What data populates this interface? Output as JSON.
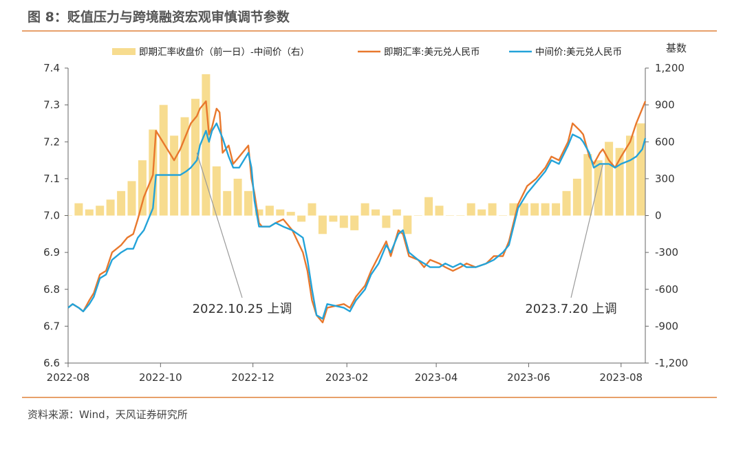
{
  "header": {
    "title": "图 8：贬值压力与跨境融资宏观审慎调节参数"
  },
  "footer": {
    "source": "资料来源：Wind，天风证券研究所"
  },
  "colors": {
    "bar": "#f7dc8f",
    "spot": "#e8782d",
    "mid": "#23a3d9",
    "rule": "#e7a06a",
    "negative_tick": "#c0392b"
  },
  "chart_data": {
    "type": "line",
    "title": "",
    "right_axis_title": "基数",
    "x_ticks": [
      "2022-08",
      "2022-10",
      "2022-12",
      "2023-02",
      "2023-04",
      "2023-06",
      "2023-08"
    ],
    "x_tick_dates": [
      "2022-08-01",
      "2022-10-01",
      "2022-12-01",
      "2023-02-01",
      "2023-04-01",
      "2023-06-01",
      "2023-08-01"
    ],
    "x_range": [
      "2022-08-01",
      "2023-08-17"
    ],
    "y_left": {
      "min": 6.6,
      "max": 7.4,
      "ticks": [
        "6.6",
        "6.7",
        "6.8",
        "6.9",
        "7.0",
        "7.1",
        "7.2",
        "7.3",
        "7.4"
      ]
    },
    "y_right": {
      "min": -1200,
      "max": 1200,
      "ticks": [
        "-1,200",
        "-900",
        "-600",
        "-300",
        "0",
        "300",
        "600",
        "900",
        "1,200"
      ]
    },
    "legend": [
      {
        "name": "即期汇率收盘价（前一日）-中间价（右）",
        "kind": "bar"
      },
      {
        "name": "即期汇率:美元兑人民币",
        "kind": "line"
      },
      {
        "name": "中间价:美元兑人民币",
        "kind": "line"
      }
    ],
    "annotations": [
      {
        "text": "2022.10.25 上调",
        "date": "2022-10-25",
        "value": 7.17
      },
      {
        "text": "2023.7.20 上调",
        "date": "2023-07-20",
        "value": 7.14
      }
    ],
    "series": [
      {
        "name": "即期汇率:美元兑人民币",
        "points": [
          [
            "2022-08-01",
            6.75
          ],
          [
            "2022-08-04",
            6.76
          ],
          [
            "2022-08-08",
            6.75
          ],
          [
            "2022-08-11",
            6.74
          ],
          [
            "2022-08-15",
            6.77
          ],
          [
            "2022-08-18",
            6.79
          ],
          [
            "2022-08-22",
            6.84
          ],
          [
            "2022-08-26",
            6.85
          ],
          [
            "2022-08-30",
            6.9
          ],
          [
            "2022-09-05",
            6.92
          ],
          [
            "2022-09-09",
            6.94
          ],
          [
            "2022-09-13",
            6.95
          ],
          [
            "2022-09-16",
            6.99
          ],
          [
            "2022-09-20",
            7.05
          ],
          [
            "2022-09-26",
            7.11
          ],
          [
            "2022-09-28",
            7.23
          ],
          [
            "2022-10-10",
            7.15
          ],
          [
            "2022-10-14",
            7.18
          ],
          [
            "2022-10-18",
            7.22
          ],
          [
            "2022-10-21",
            7.25
          ],
          [
            "2022-10-25",
            7.27
          ],
          [
            "2022-10-27",
            7.29
          ],
          [
            "2022-10-31",
            7.31
          ],
          [
            "2022-11-02",
            7.22
          ],
          [
            "2022-11-04",
            7.24
          ],
          [
            "2022-11-07",
            7.29
          ],
          [
            "2022-11-09",
            7.28
          ],
          [
            "2022-11-11",
            7.17
          ],
          [
            "2022-11-15",
            7.19
          ],
          [
            "2022-11-18",
            7.14
          ],
          [
            "2022-11-22",
            7.16
          ],
          [
            "2022-11-28",
            7.19
          ],
          [
            "2022-11-30",
            7.1
          ],
          [
            "2022-12-02",
            7.06
          ],
          [
            "2022-12-05",
            6.98
          ],
          [
            "2022-12-07",
            6.97
          ],
          [
            "2022-12-12",
            6.97
          ],
          [
            "2022-12-16",
            6.98
          ],
          [
            "2022-12-21",
            6.99
          ],
          [
            "2022-12-27",
            6.96
          ],
          [
            "2023-01-03",
            6.9
          ],
          [
            "2023-01-06",
            6.85
          ],
          [
            "2023-01-09",
            6.77
          ],
          [
            "2023-01-12",
            6.73
          ],
          [
            "2023-01-16",
            6.71
          ],
          [
            "2023-01-19",
            6.75
          ],
          [
            "2023-01-30",
            6.76
          ],
          [
            "2023-02-03",
            6.75
          ],
          [
            "2023-02-07",
            6.78
          ],
          [
            "2023-02-13",
            6.81
          ],
          [
            "2023-02-17",
            6.85
          ],
          [
            "2023-02-22",
            6.89
          ],
          [
            "2023-02-27",
            6.93
          ],
          [
            "2023-03-02",
            6.89
          ],
          [
            "2023-03-07",
            6.96
          ],
          [
            "2023-03-10",
            6.95
          ],
          [
            "2023-03-14",
            6.89
          ],
          [
            "2023-03-20",
            6.88
          ],
          [
            "2023-03-24",
            6.86
          ],
          [
            "2023-03-28",
            6.88
          ],
          [
            "2023-04-03",
            6.87
          ],
          [
            "2023-04-07",
            6.86
          ],
          [
            "2023-04-12",
            6.85
          ],
          [
            "2023-04-17",
            6.86
          ],
          [
            "2023-04-21",
            6.87
          ],
          [
            "2023-04-27",
            6.86
          ],
          [
            "2023-05-04",
            6.87
          ],
          [
            "2023-05-09",
            6.89
          ],
          [
            "2023-05-15",
            6.89
          ],
          [
            "2023-05-19",
            6.93
          ],
          [
            "2023-05-25",
            7.03
          ],
          [
            "2023-05-31",
            7.08
          ],
          [
            "2023-06-06",
            7.1
          ],
          [
            "2023-06-12",
            7.13
          ],
          [
            "2023-06-16",
            7.16
          ],
          [
            "2023-06-21",
            7.15
          ],
          [
            "2023-06-27",
            7.2
          ],
          [
            "2023-06-30",
            7.25
          ],
          [
            "2023-07-05",
            7.23
          ],
          [
            "2023-07-07",
            7.22
          ],
          [
            "2023-07-11",
            7.16
          ],
          [
            "2023-07-14",
            7.14
          ],
          [
            "2023-07-18",
            7.17
          ],
          [
            "2023-07-20",
            7.18
          ],
          [
            "2023-07-24",
            7.15
          ],
          [
            "2023-07-28",
            7.13
          ],
          [
            "2023-08-01",
            7.16
          ],
          [
            "2023-08-07",
            7.2
          ],
          [
            "2023-08-11",
            7.25
          ],
          [
            "2023-08-15",
            7.29
          ],
          [
            "2023-08-17",
            7.31
          ]
        ]
      },
      {
        "name": "中间价:美元兑人民币",
        "points": [
          [
            "2022-08-01",
            6.75
          ],
          [
            "2022-08-04",
            6.76
          ],
          [
            "2022-08-08",
            6.75
          ],
          [
            "2022-08-11",
            6.74
          ],
          [
            "2022-08-15",
            6.76
          ],
          [
            "2022-08-18",
            6.78
          ],
          [
            "2022-08-22",
            6.83
          ],
          [
            "2022-08-26",
            6.84
          ],
          [
            "2022-08-30",
            6.88
          ],
          [
            "2022-09-05",
            6.9
          ],
          [
            "2022-09-09",
            6.91
          ],
          [
            "2022-09-13",
            6.91
          ],
          [
            "2022-09-16",
            6.94
          ],
          [
            "2022-09-20",
            6.96
          ],
          [
            "2022-09-26",
            7.02
          ],
          [
            "2022-09-28",
            7.11
          ],
          [
            "2022-10-10",
            7.11
          ],
          [
            "2022-10-14",
            7.11
          ],
          [
            "2022-10-18",
            7.12
          ],
          [
            "2022-10-21",
            7.13
          ],
          [
            "2022-10-25",
            7.15
          ],
          [
            "2022-10-27",
            7.19
          ],
          [
            "2022-10-31",
            7.23
          ],
          [
            "2022-11-02",
            7.2
          ],
          [
            "2022-11-04",
            7.23
          ],
          [
            "2022-11-07",
            7.25
          ],
          [
            "2022-11-09",
            7.23
          ],
          [
            "2022-11-11",
            7.21
          ],
          [
            "2022-11-15",
            7.16
          ],
          [
            "2022-11-18",
            7.13
          ],
          [
            "2022-11-22",
            7.13
          ],
          [
            "2022-11-28",
            7.17
          ],
          [
            "2022-11-30",
            7.13
          ],
          [
            "2022-12-02",
            7.04
          ],
          [
            "2022-12-05",
            6.97
          ],
          [
            "2022-12-07",
            6.97
          ],
          [
            "2022-12-12",
            6.97
          ],
          [
            "2022-12-16",
            6.98
          ],
          [
            "2022-12-21",
            6.97
          ],
          [
            "2022-12-27",
            6.96
          ],
          [
            "2023-01-03",
            6.94
          ],
          [
            "2023-01-06",
            6.88
          ],
          [
            "2023-01-09",
            6.8
          ],
          [
            "2023-01-12",
            6.73
          ],
          [
            "2023-01-16",
            6.72
          ],
          [
            "2023-01-19",
            6.76
          ],
          [
            "2023-01-30",
            6.75
          ],
          [
            "2023-02-03",
            6.74
          ],
          [
            "2023-02-07",
            6.77
          ],
          [
            "2023-02-13",
            6.8
          ],
          [
            "2023-02-17",
            6.84
          ],
          [
            "2023-02-22",
            6.87
          ],
          [
            "2023-02-27",
            6.92
          ],
          [
            "2023-03-02",
            6.9
          ],
          [
            "2023-03-07",
            6.95
          ],
          [
            "2023-03-10",
            6.96
          ],
          [
            "2023-03-14",
            6.9
          ],
          [
            "2023-03-20",
            6.88
          ],
          [
            "2023-03-24",
            6.87
          ],
          [
            "2023-03-28",
            6.86
          ],
          [
            "2023-04-03",
            6.86
          ],
          [
            "2023-04-07",
            6.87
          ],
          [
            "2023-04-12",
            6.86
          ],
          [
            "2023-04-17",
            6.87
          ],
          [
            "2023-04-21",
            6.86
          ],
          [
            "2023-04-27",
            6.86
          ],
          [
            "2023-05-04",
            6.87
          ],
          [
            "2023-05-09",
            6.88
          ],
          [
            "2023-05-15",
            6.9
          ],
          [
            "2023-05-19",
            6.92
          ],
          [
            "2023-05-25",
            7.02
          ],
          [
            "2023-05-31",
            7.06
          ],
          [
            "2023-06-06",
            7.09
          ],
          [
            "2023-06-12",
            7.12
          ],
          [
            "2023-06-16",
            7.15
          ],
          [
            "2023-06-21",
            7.14
          ],
          [
            "2023-06-27",
            7.19
          ],
          [
            "2023-06-30",
            7.22
          ],
          [
            "2023-07-05",
            7.21
          ],
          [
            "2023-07-07",
            7.2
          ],
          [
            "2023-07-11",
            7.17
          ],
          [
            "2023-07-14",
            7.13
          ],
          [
            "2023-07-18",
            7.14
          ],
          [
            "2023-07-20",
            7.14
          ],
          [
            "2023-07-24",
            7.14
          ],
          [
            "2023-07-28",
            7.13
          ],
          [
            "2023-08-01",
            7.14
          ],
          [
            "2023-08-07",
            7.15
          ],
          [
            "2023-08-11",
            7.16
          ],
          [
            "2023-08-15",
            7.18
          ],
          [
            "2023-08-17",
            7.21
          ]
        ]
      },
      {
        "name": "即期汇率收盘价（前一日）-中间价（右）",
        "kind": "bar",
        "points": [
          [
            "2022-08-01",
            0
          ],
          [
            "2022-08-08",
            100
          ],
          [
            "2022-08-15",
            50
          ],
          [
            "2022-08-22",
            80
          ],
          [
            "2022-08-29",
            130
          ],
          [
            "2022-09-05",
            200
          ],
          [
            "2022-09-12",
            280
          ],
          [
            "2022-09-19",
            450
          ],
          [
            "2022-09-26",
            700
          ],
          [
            "2022-10-03",
            900
          ],
          [
            "2022-10-10",
            650
          ],
          [
            "2022-10-17",
            800
          ],
          [
            "2022-10-24",
            950
          ],
          [
            "2022-10-31",
            1150
          ],
          [
            "2022-11-07",
            400
          ],
          [
            "2022-11-14",
            200
          ],
          [
            "2022-11-21",
            300
          ],
          [
            "2022-11-28",
            200
          ],
          [
            "2022-12-05",
            50
          ],
          [
            "2022-12-12",
            80
          ],
          [
            "2022-12-19",
            50
          ],
          [
            "2022-12-26",
            30
          ],
          [
            "2023-01-02",
            -50
          ],
          [
            "2023-01-09",
            100
          ],
          [
            "2023-01-16",
            -150
          ],
          [
            "2023-01-23",
            -50
          ],
          [
            "2023-01-30",
            -100
          ],
          [
            "2023-02-06",
            -120
          ],
          [
            "2023-02-13",
            100
          ],
          [
            "2023-02-20",
            50
          ],
          [
            "2023-02-27",
            -100
          ],
          [
            "2023-03-06",
            50
          ],
          [
            "2023-03-13",
            -150
          ],
          [
            "2023-03-20",
            0
          ],
          [
            "2023-03-27",
            150
          ],
          [
            "2023-04-03",
            80
          ],
          [
            "2023-04-10",
            0
          ],
          [
            "2023-04-17",
            0
          ],
          [
            "2023-04-24",
            100
          ],
          [
            "2023-05-01",
            50
          ],
          [
            "2023-05-08",
            100
          ],
          [
            "2023-05-15",
            0
          ],
          [
            "2023-05-22",
            100
          ],
          [
            "2023-05-29",
            100
          ],
          [
            "2023-06-05",
            100
          ],
          [
            "2023-06-12",
            100
          ],
          [
            "2023-06-19",
            100
          ],
          [
            "2023-06-26",
            200
          ],
          [
            "2023-07-03",
            300
          ],
          [
            "2023-07-10",
            500
          ],
          [
            "2023-07-17",
            450
          ],
          [
            "2023-07-24",
            600
          ],
          [
            "2023-07-31",
            550
          ],
          [
            "2023-08-07",
            650
          ],
          [
            "2023-08-14",
            750
          ]
        ]
      }
    ]
  }
}
